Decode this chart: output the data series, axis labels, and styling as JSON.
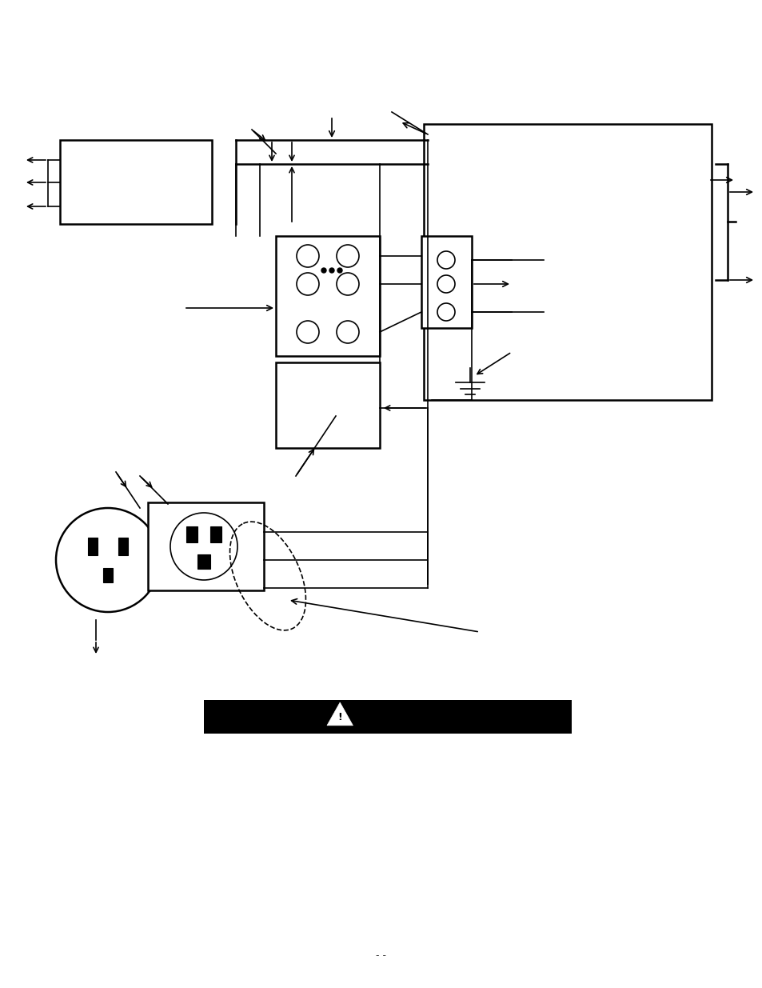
{
  "bg_color": "#ffffff",
  "page_width": 9.54,
  "page_height": 12.35,
  "dpi": 100
}
